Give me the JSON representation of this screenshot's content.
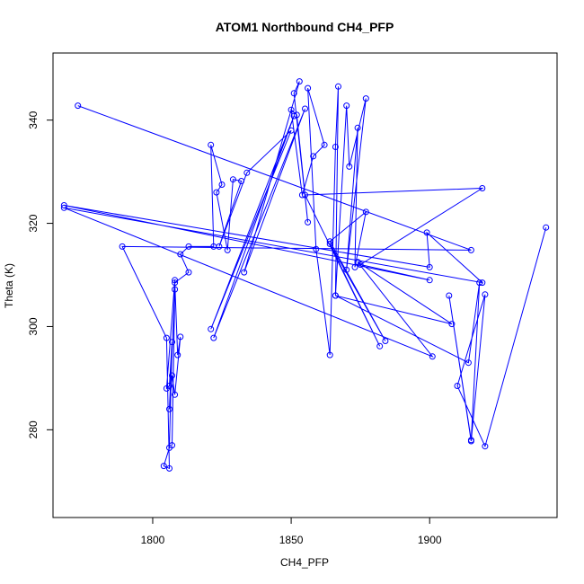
{
  "chart_data": {
    "type": "line",
    "title": "ATOM1 Northbound CH4_PFP",
    "xlabel": "CH4_PFP",
    "ylabel": "Theta (K)",
    "xlim": [
      1764,
      1946
    ],
    "ylim": [
      263,
      353
    ],
    "xticks": [
      1800,
      1850,
      1900
    ],
    "yticks": [
      280,
      300,
      320,
      340
    ],
    "grid": false,
    "markers": "open-circle",
    "line_color": "#0000ff",
    "series": [
      {
        "points": [
          [
            1773,
            342.8
          ],
          [
            1915,
            314.8
          ],
          [
            1789,
            315.5
          ],
          [
            1805,
            297.8
          ],
          [
            1806,
            272.5
          ],
          [
            1804,
            273.0
          ],
          [
            1806,
            276.5
          ],
          [
            1807,
            297.0
          ],
          [
            1806,
            288.5
          ],
          [
            1805,
            288.0
          ],
          [
            1808,
            309.0
          ],
          [
            1807,
            277.0
          ],
          [
            1808,
            307.2
          ],
          [
            1806,
            284.0
          ],
          [
            1807,
            290.5
          ],
          [
            1808,
            286.8
          ],
          [
            1810,
            298.0
          ],
          [
            1809,
            294.5
          ],
          [
            1808,
            308.5
          ],
          [
            1813,
            310.5
          ],
          [
            1810,
            314.0
          ],
          [
            1813,
            315.5
          ],
          [
            1822,
            315.5
          ],
          [
            1821,
            335.2
          ],
          [
            1825,
            327.5
          ],
          [
            1823,
            326.0
          ],
          [
            1827,
            314.8
          ],
          [
            1829,
            328.5
          ],
          [
            1832,
            328.2
          ],
          [
            1824,
            315.5
          ],
          [
            1834,
            329.8
          ],
          [
            1850,
            338.0
          ],
          [
            1821,
            299.5
          ],
          [
            1851,
            340.8
          ],
          [
            1822,
            297.8
          ],
          [
            1855,
            342.2
          ],
          [
            1833,
            310.5
          ],
          [
            1853,
            347.5
          ],
          [
            1851,
            345.2
          ],
          [
            1856,
            320.2
          ],
          [
            1852,
            341.0
          ],
          [
            1850,
            342.0
          ],
          [
            1854,
            325.5
          ],
          [
            1858,
            333.0
          ],
          [
            1862,
            335.2
          ],
          [
            1856,
            346.2
          ],
          [
            1859,
            315.0
          ],
          [
            1864,
            294.5
          ],
          [
            1866,
            334.8
          ],
          [
            1867,
            346.5
          ],
          [
            1866,
            306.0
          ],
          [
            1870,
            342.8
          ],
          [
            1871,
            331.0
          ],
          [
            1877,
            344.2
          ],
          [
            1870,
            311.0
          ],
          [
            1874,
            338.5
          ],
          [
            1873,
            311.5
          ],
          [
            1877,
            322.2
          ],
          [
            1864,
            316.5
          ],
          [
            1884,
            297.2
          ],
          [
            1864,
            316.0
          ],
          [
            1882,
            296.2
          ],
          [
            1855,
            325.5
          ],
          [
            1919,
            326.8
          ],
          [
            1875,
            312.0
          ],
          [
            1900,
            309.0
          ],
          [
            1768,
            323.5
          ],
          [
            1900,
            311.5
          ],
          [
            1899,
            318.2
          ],
          [
            1919,
            308.5
          ],
          [
            1768,
            323.0
          ],
          [
            1901,
            294.2
          ],
          [
            1874,
            312.5
          ],
          [
            1908,
            300.5
          ],
          [
            1866,
            306.0
          ],
          [
            1914,
            293.0
          ],
          [
            1918,
            308.5
          ],
          [
            1915,
            278.0
          ],
          [
            1907,
            306.0
          ],
          [
            1915,
            277.8
          ],
          [
            1920,
            306.2
          ],
          [
            1910,
            288.5
          ],
          [
            1920,
            276.8
          ],
          [
            1942,
            319.2
          ]
        ]
      }
    ]
  }
}
